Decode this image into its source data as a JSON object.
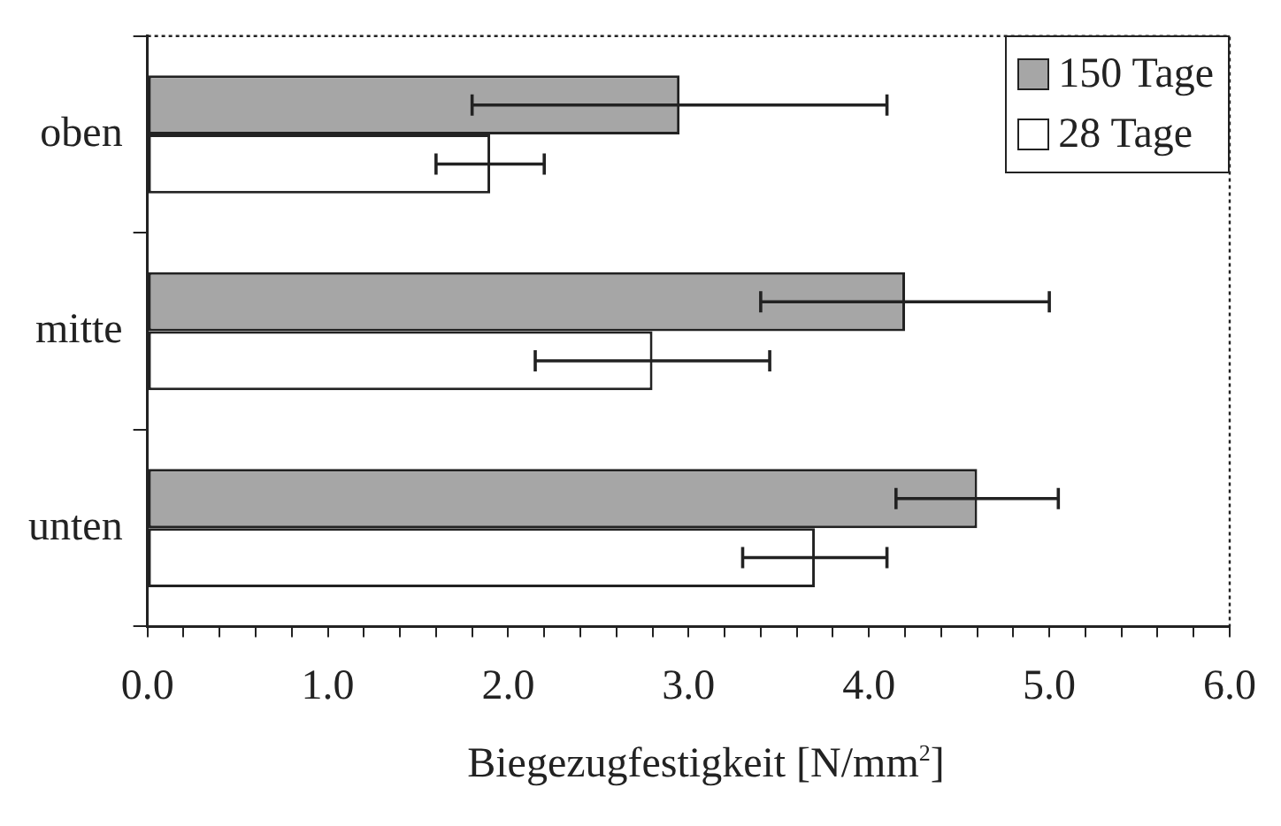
{
  "chart_data": {
    "type": "bar",
    "orientation": "horizontal",
    "xlabel": "Biegezugfestigkeit [N/mm$^{2}$]",
    "categories": [
      "oben",
      "mitte",
      "unten"
    ],
    "series": [
      {
        "name": "150 Tage",
        "color": "#a6a6a6",
        "values": [
          2.95,
          4.2,
          4.6
        ],
        "errors": [
          1.15,
          0.8,
          0.45
        ]
      },
      {
        "name": "28 Tage",
        "color": "#ffffff",
        "values": [
          1.9,
          2.8,
          3.7
        ],
        "errors": [
          0.3,
          0.65,
          0.4
        ]
      }
    ],
    "xlim": [
      0,
      6
    ],
    "xticks": [
      {
        "value": 0,
        "label": "0.0"
      },
      {
        "value": 0.2,
        "label": null
      },
      {
        "value": 0.4,
        "label": null
      },
      {
        "value": 0.6,
        "label": null
      },
      {
        "value": 0.8,
        "label": null
      },
      {
        "value": 1,
        "label": "1.0"
      },
      {
        "value": 1.2,
        "label": null
      },
      {
        "value": 1.4,
        "label": null
      },
      {
        "value": 1.6,
        "label": null
      },
      {
        "value": 1.8,
        "label": null
      },
      {
        "value": 2,
        "label": "2.0"
      },
      {
        "value": 2.2,
        "label": null
      },
      {
        "value": 2.4,
        "label": null
      },
      {
        "value": 2.6,
        "label": null
      },
      {
        "value": 2.8,
        "label": null
      },
      {
        "value": 3,
        "label": "3.0"
      },
      {
        "value": 3.2,
        "label": null
      },
      {
        "value": 3.4,
        "label": null
      },
      {
        "value": 3.6,
        "label": null
      },
      {
        "value": 3.8,
        "label": null
      },
      {
        "value": 4,
        "label": "4.0"
      },
      {
        "value": 4.2,
        "label": null
      },
      {
        "value": 4.4,
        "label": null
      },
      {
        "value": 4.6,
        "label": null
      },
      {
        "value": 4.8,
        "label": null
      },
      {
        "value": 5,
        "label": "5.0"
      },
      {
        "value": 5.2,
        "label": null
      },
      {
        "value": 5.4,
        "label": null
      },
      {
        "value": 5.6,
        "label": null
      },
      {
        "value": 5.8,
        "label": null
      },
      {
        "value": 6,
        "label": "6.0"
      }
    ],
    "grid": false,
    "legend": "top right"
  }
}
